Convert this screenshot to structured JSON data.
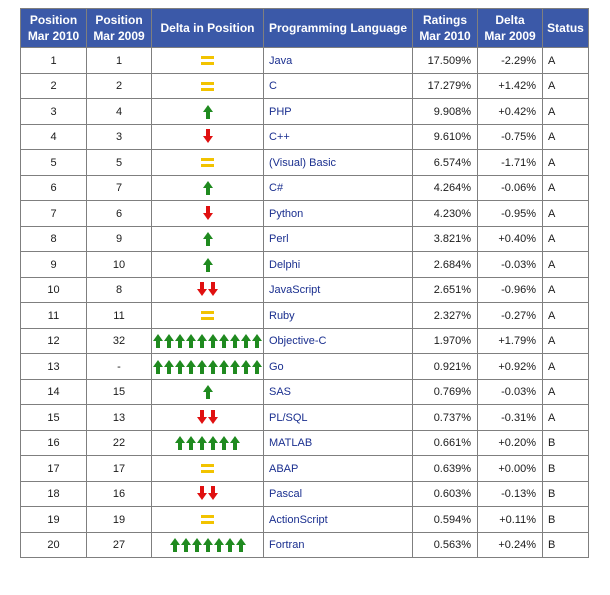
{
  "headers": {
    "pos2010": [
      "Position",
      "Mar 2010"
    ],
    "pos2009": [
      "Position",
      "Mar 2009"
    ],
    "delta_pos": "Delta in Position",
    "language": "Programming Language",
    "ratings": [
      "Ratings",
      "Mar 2010"
    ],
    "delta2009": [
      "Delta",
      "Mar 2009"
    ],
    "status": "Status"
  },
  "colors": {
    "header_bg": "#3b59a8",
    "arrow_up": "#1f8a1f",
    "arrow_down": "#e01010",
    "equal": "#f2c300",
    "language_text": "#1a2f8f"
  },
  "rows": [
    {
      "pos2010": "1",
      "pos2009": "1",
      "trend": "equal",
      "arrows": 1,
      "language": "Java",
      "rating": "17.509%",
      "delta": "-2.29%",
      "status": "A"
    },
    {
      "pos2010": "2",
      "pos2009": "2",
      "trend": "equal",
      "arrows": 1,
      "language": "C",
      "rating": "17.279%",
      "delta": "+1.42%",
      "status": "A"
    },
    {
      "pos2010": "3",
      "pos2009": "4",
      "trend": "up",
      "arrows": 1,
      "language": "PHP",
      "rating": "9.908%",
      "delta": "+0.42%",
      "status": "A"
    },
    {
      "pos2010": "4",
      "pos2009": "3",
      "trend": "down",
      "arrows": 1,
      "language": "C++",
      "rating": "9.610%",
      "delta": "-0.75%",
      "status": "A"
    },
    {
      "pos2010": "5",
      "pos2009": "5",
      "trend": "equal",
      "arrows": 1,
      "language": "(Visual) Basic",
      "rating": "6.574%",
      "delta": "-1.71%",
      "status": "A"
    },
    {
      "pos2010": "6",
      "pos2009": "7",
      "trend": "up",
      "arrows": 1,
      "language": "C#",
      "rating": "4.264%",
      "delta": "-0.06%",
      "status": "A"
    },
    {
      "pos2010": "7",
      "pos2009": "6",
      "trend": "down",
      "arrows": 1,
      "language": "Python",
      "rating": "4.230%",
      "delta": "-0.95%",
      "status": "A"
    },
    {
      "pos2010": "8",
      "pos2009": "9",
      "trend": "up",
      "arrows": 1,
      "language": "Perl",
      "rating": "3.821%",
      "delta": "+0.40%",
      "status": "A"
    },
    {
      "pos2010": "9",
      "pos2009": "10",
      "trend": "up",
      "arrows": 1,
      "language": "Delphi",
      "rating": "2.684%",
      "delta": "-0.03%",
      "status": "A"
    },
    {
      "pos2010": "10",
      "pos2009": "8",
      "trend": "down",
      "arrows": 2,
      "language": "JavaScript",
      "rating": "2.651%",
      "delta": "-0.96%",
      "status": "A"
    },
    {
      "pos2010": "11",
      "pos2009": "11",
      "trend": "equal",
      "arrows": 1,
      "language": "Ruby",
      "rating": "2.327%",
      "delta": "-0.27%",
      "status": "A"
    },
    {
      "pos2010": "12",
      "pos2009": "32",
      "trend": "up",
      "arrows": 10,
      "language": "Objective-C",
      "rating": "1.970%",
      "delta": "+1.79%",
      "status": "A"
    },
    {
      "pos2010": "13",
      "pos2009": "-",
      "trend": "up",
      "arrows": 10,
      "language": "Go",
      "rating": "0.921%",
      "delta": "+0.92%",
      "status": "A"
    },
    {
      "pos2010": "14",
      "pos2009": "15",
      "trend": "up",
      "arrows": 1,
      "language": "SAS",
      "rating": "0.769%",
      "delta": "-0.03%",
      "status": "A"
    },
    {
      "pos2010": "15",
      "pos2009": "13",
      "trend": "down",
      "arrows": 2,
      "language": "PL/SQL",
      "rating": "0.737%",
      "delta": "-0.31%",
      "status": "A"
    },
    {
      "pos2010": "16",
      "pos2009": "22",
      "trend": "up",
      "arrows": 6,
      "language": "MATLAB",
      "rating": "0.661%",
      "delta": "+0.20%",
      "status": "B"
    },
    {
      "pos2010": "17",
      "pos2009": "17",
      "trend": "equal",
      "arrows": 1,
      "language": "ABAP",
      "rating": "0.639%",
      "delta": "+0.00%",
      "status": "B"
    },
    {
      "pos2010": "18",
      "pos2009": "16",
      "trend": "down",
      "arrows": 2,
      "language": "Pascal",
      "rating": "0.603%",
      "delta": "-0.13%",
      "status": "B"
    },
    {
      "pos2010": "19",
      "pos2009": "19",
      "trend": "equal",
      "arrows": 1,
      "language": "ActionScript",
      "rating": "0.594%",
      "delta": "+0.11%",
      "status": "B"
    },
    {
      "pos2010": "20",
      "pos2009": "27",
      "trend": "up",
      "arrows": 7,
      "language": "Fortran",
      "rating": "0.563%",
      "delta": "+0.24%",
      "status": "B"
    }
  ]
}
